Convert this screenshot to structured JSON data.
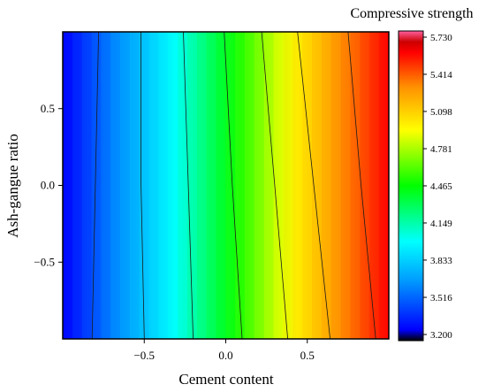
{
  "chart_data": {
    "type": "heatmap",
    "subtype": "contour",
    "xlabel": "Cement content",
    "ylabel": "Ash-gangue ratio",
    "colorbar_title": "Compressive strength",
    "x_ticks": [
      "−0.5",
      "0.0",
      "0.5"
    ],
    "x_tick_values": [
      -0.5,
      0.0,
      0.5
    ],
    "y_ticks": [
      "0.5",
      "0.0",
      "−0.5"
    ],
    "y_tick_values": [
      0.5,
      0.0,
      -0.5
    ],
    "xlim": [
      -1,
      1
    ],
    "ylim": [
      -1,
      1
    ],
    "zlim": [
      3.2,
      5.73
    ],
    "colorbar_ticks": [
      "5.730",
      "5.414",
      "5.098",
      "4.781",
      "4.465",
      "4.149",
      "3.833",
      "3.516",
      "3.200"
    ],
    "colorbar_tick_values": [
      5.73,
      5.414,
      5.098,
      4.781,
      4.465,
      4.149,
      3.833,
      3.516,
      3.2
    ],
    "colormap": [
      "#000000",
      "#0000ff",
      "#00a0ff",
      "#00ffff",
      "#00ff00",
      "#ffff00",
      "#ff9000",
      "#ff0000",
      "#cc0000",
      "#ff60a0"
    ],
    "contour_lines": [
      {
        "level": 3.516,
        "points": [
          [
            -0.78,
            1.0
          ],
          [
            -0.8,
            0.0
          ],
          [
            -0.82,
            -1.0
          ]
        ]
      },
      {
        "level": 3.833,
        "points": [
          [
            -0.52,
            1.0
          ],
          [
            -0.52,
            0.0
          ],
          [
            -0.5,
            -1.0
          ]
        ]
      },
      {
        "level": 4.149,
        "points": [
          [
            -0.26,
            1.0
          ],
          [
            -0.23,
            0.0
          ],
          [
            -0.2,
            -1.0
          ]
        ]
      },
      {
        "level": 4.465,
        "points": [
          [
            -0.01,
            1.0
          ],
          [
            0.04,
            0.0
          ],
          [
            0.1,
            -1.0
          ]
        ]
      },
      {
        "level": 4.781,
        "points": [
          [
            0.22,
            1.0
          ],
          [
            0.3,
            0.0
          ],
          [
            0.38,
            -1.0
          ]
        ]
      },
      {
        "level": 5.098,
        "points": [
          [
            0.44,
            1.0
          ],
          [
            0.54,
            0.0
          ],
          [
            0.64,
            -1.0
          ]
        ]
      },
      {
        "level": 5.414,
        "points": [
          [
            0.75,
            1.0
          ],
          [
            0.83,
            0.0
          ],
          [
            0.92,
            -1.0
          ]
        ]
      }
    ],
    "grid": false,
    "legend": "colorbar-right"
  }
}
